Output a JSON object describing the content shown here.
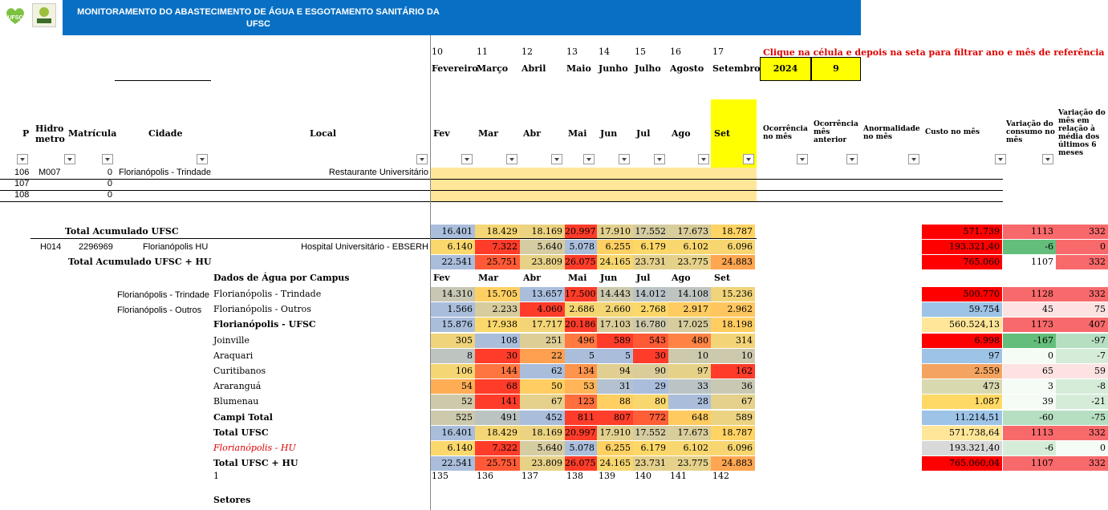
{
  "title": "MONITORAMENTO DO ABASTECIMENTO DE ÁGUA E ESGOTAMENTO SANITÁRIO DA UFSC",
  "logos": {
    "a": "UFSC Sustentável",
    "b": "GESTÃO AMBIENTAL UFSC"
  },
  "instruction": "Clique na célula e depois na seta para filtrar ano e mês de referência",
  "filter": {
    "year": "2024",
    "month": "9"
  },
  "month_nums": [
    "10",
    "11",
    "12",
    "13",
    "14",
    "15",
    "16",
    "17"
  ],
  "month_names": [
    "Fevereiro",
    "Março",
    "Abril",
    "Maio",
    "Junho",
    "Julho",
    "Agosto",
    "Setembro"
  ],
  "headers": {
    "p": "P",
    "hidro": "Hidro metro",
    "matricula": "Matrícula",
    "cidade": "Cidade",
    "local": "Local",
    "months": [
      "Fev",
      "Mar",
      "Abr",
      "Mai",
      "Jun",
      "Jul",
      "Ago",
      "Set"
    ],
    "ocorr": "Ocorrência no mês",
    "ocorr_ant": "Ocorrência mês anterior",
    "anom": "Anormalidade no mês",
    "custo": "Custo no mês",
    "var": "Variação do consumo no mês",
    "var6": "Variação do mês em relação à média dos últimos 6 meses"
  },
  "rows": [
    {
      "p": "106",
      "hidro": "M007",
      "mat": "0",
      "cidade": "Florianópolis - Trindade",
      "local": "Restaurante Universitário"
    },
    {
      "p": "107",
      "mat": "0"
    },
    {
      "p": "108",
      "mat": "0"
    }
  ],
  "total_ufsc": {
    "label": "Total Acumulado UFSC",
    "values": [
      "16.401",
      "18.429",
      "18.169",
      "20.997",
      "17.910",
      "17.552",
      "17.673",
      "18.787"
    ],
    "custo": "571.739",
    "var": "1113",
    "var6": "332"
  },
  "hu": {
    "hidro": "H014",
    "mat": "2296969",
    "cidade": "Florianópolis  HU",
    "local": "Hospital Universitário - EBSERH",
    "values": [
      "6.140",
      "7.322",
      "5.640",
      "5.078",
      "6.255",
      "6.179",
      "6.102",
      "6.096"
    ],
    "custo": "193.321,40",
    "var": "-6",
    "var6": "0"
  },
  "total_hu": {
    "label": "Total Acumulado UFSC + HU",
    "values": [
      "22.541",
      "25.751",
      "23.809",
      "26.075",
      "24.165",
      "23.731",
      "23.775",
      "24.883"
    ],
    "custo": "765.060",
    "var": "1107",
    "var6": "332"
  },
  "campus_title": "Dados de Água por Campus",
  "side_labels": [
    "Florianópolis - Trindade",
    "Florianópolis - Outros"
  ],
  "campus": [
    {
      "name": "Florianópolis - Trindade",
      "bold": false,
      "values": [
        "14.310",
        "15.705",
        "13.657",
        "17.500",
        "14.443",
        "14.012",
        "14.108",
        "15.236"
      ],
      "custo": "500.770",
      "var": "1128",
      "var6": "332"
    },
    {
      "name": "Florianópolis - Outros",
      "bold": false,
      "values": [
        "1.566",
        "2.233",
        "4.060",
        "2.686",
        "2.660",
        "2.768",
        "2.917",
        "2.962"
      ],
      "custo": "59.754",
      "var": "45",
      "var6": "75"
    },
    {
      "name": "Florianópolis - UFSC",
      "bold": true,
      "values": [
        "15.876",
        "17.938",
        "17.717",
        "20.186",
        "17.103",
        "16.780",
        "17.025",
        "18.198"
      ],
      "custo": "560.524,13",
      "var": "1173",
      "var6": "407"
    },
    {
      "name": "Joinville",
      "bold": false,
      "values": [
        "305",
        "108",
        "251",
        "496",
        "589",
        "543",
        "480",
        "314"
      ],
      "custo": "6.998",
      "var": "-167",
      "var6": "-97"
    },
    {
      "name": "Araquari",
      "bold": false,
      "values": [
        "8",
        "30",
        "22",
        "5",
        "5",
        "30",
        "10",
        "10"
      ],
      "custo": "97",
      "var": "0",
      "var6": "-7"
    },
    {
      "name": "Curitibanos",
      "bold": false,
      "values": [
        "106",
        "144",
        "62",
        "134",
        "94",
        "90",
        "97",
        "162"
      ],
      "custo": "2.559",
      "var": "65",
      "var6": "59"
    },
    {
      "name": "Araranguá",
      "bold": false,
      "values": [
        "54",
        "68",
        "50",
        "53",
        "31",
        "29",
        "33",
        "36"
      ],
      "custo": "473",
      "var": "3",
      "var6": "-8"
    },
    {
      "name": "Blumenau",
      "bold": false,
      "values": [
        "52",
        "141",
        "67",
        "123",
        "88",
        "80",
        "28",
        "67"
      ],
      "custo": "1.087",
      "var": "39",
      "var6": "-21"
    },
    {
      "name": "Campi Total",
      "bold": true,
      "values": [
        "525",
        "491",
        "452",
        "811",
        "807",
        "772",
        "648",
        "589"
      ],
      "custo": "11.214,51",
      "var": "-60",
      "var6": "-75"
    },
    {
      "name": "Total UFSC",
      "bold": true,
      "values": [
        "16.401",
        "18.429",
        "18.169",
        "20.997",
        "17.910",
        "17.552",
        "17.673",
        "18.787"
      ],
      "custo": "571.738,64",
      "var": "1113",
      "var6": "332"
    },
    {
      "name": "Florianópolis - HU",
      "italic": true,
      "values": [
        "6.140",
        "7.322",
        "5.640",
        "5.078",
        "6.255",
        "6.179",
        "6.102",
        "6.096"
      ],
      "custo": "193.321,40",
      "var": "-6",
      "var6": "0"
    },
    {
      "name": "Total UFSC + HU",
      "bold": true,
      "values": [
        "22.541",
        "25.751",
        "23.809",
        "26.075",
        "24.165",
        "23.731",
        "23.775",
        "24.883"
      ],
      "custo": "765.060,04",
      "var": "1107",
      "var6": "332"
    }
  ],
  "footer_one": "1",
  "footer_nums": [
    "135",
    "136",
    "137",
    "138",
    "139",
    "140",
    "141",
    "142"
  ],
  "setores": "Setores",
  "colors": {
    "red": "#ff0000",
    "orange": "#f8696b",
    "yellow": "#ffff00",
    "blue": "#0870c4"
  }
}
